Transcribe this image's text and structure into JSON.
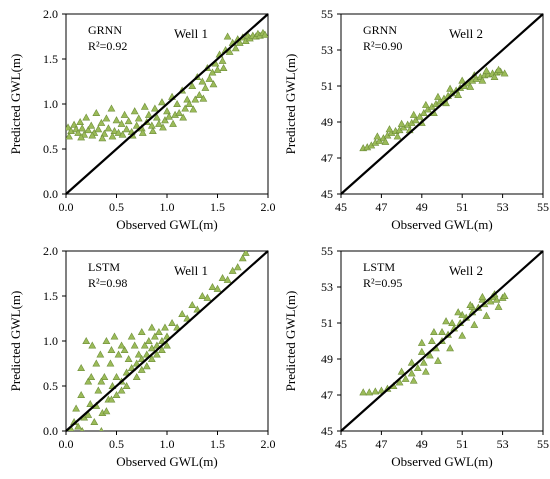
{
  "chart_data": [
    {
      "type": "scatter",
      "method_label": "GRNN",
      "r2_label": "R²=0.92",
      "well_label": "Well 1",
      "xlabel": "Observed GWL(m)",
      "ylabel": "Predicted GWL(m)",
      "xlim": [
        0.0,
        2.0
      ],
      "ylim": [
        0.0,
        2.0
      ],
      "xticks": [
        "0.0",
        "0.5",
        "1.0",
        "1.5",
        "2.0"
      ],
      "yticks": [
        "0.0",
        "0.5",
        "1.0",
        "1.5",
        "2.0"
      ],
      "reference_line": "1:1",
      "marker_color": "#9bbb59",
      "marker_edge_color": "#6f8f3a",
      "line_color": "#000000",
      "points": [
        [
          0.02,
          0.74
        ],
        [
          0.05,
          0.7
        ],
        [
          0.08,
          0.77
        ],
        [
          0.1,
          0.72
        ],
        [
          0.12,
          0.68
        ],
        [
          0.14,
          0.8
        ],
        [
          0.16,
          0.73
        ],
        [
          0.18,
          0.66
        ],
        [
          0.2,
          0.85
        ],
        [
          0.22,
          0.71
        ],
        [
          0.25,
          0.76
        ],
        [
          0.28,
          0.68
        ],
        [
          0.3,
          0.9
        ],
        [
          0.32,
          0.72
        ],
        [
          0.35,
          0.79
        ],
        [
          0.38,
          0.67
        ],
        [
          0.4,
          0.84
        ],
        [
          0.42,
          0.73
        ],
        [
          0.45,
          0.95
        ],
        [
          0.48,
          0.7
        ],
        [
          0.5,
          0.82
        ],
        [
          0.52,
          0.68
        ],
        [
          0.55,
          0.78
        ],
        [
          0.58,
          0.88
        ],
        [
          0.6,
          0.72
        ],
        [
          0.62,
          0.81
        ],
        [
          0.65,
          0.69
        ],
        [
          0.68,
          0.92
        ],
        [
          0.7,
          0.76
        ],
        [
          0.72,
          0.84
        ],
        [
          0.75,
          0.73
        ],
        [
          0.78,
          0.97
        ],
        [
          0.8,
          0.8
        ],
        [
          0.82,
          0.88
        ],
        [
          0.85,
          0.76
        ],
        [
          0.88,
          0.95
        ],
        [
          0.9,
          0.85
        ],
        [
          0.92,
          0.78
        ],
        [
          0.95,
          1.02
        ],
        [
          0.98,
          0.82
        ],
        [
          1.0,
          0.92
        ],
        [
          1.02,
          0.86
        ],
        [
          1.05,
          1.08
        ],
        [
          1.08,
          0.88
        ],
        [
          1.1,
          1.0
        ],
        [
          1.12,
          0.9
        ],
        [
          1.15,
          1.15
        ],
        [
          1.18,
          0.95
        ],
        [
          1.2,
          1.05
        ],
        [
          1.22,
          1.0
        ],
        [
          1.25,
          1.2
        ],
        [
          1.28,
          1.05
        ],
        [
          1.3,
          1.3
        ],
        [
          1.32,
          1.1
        ],
        [
          1.35,
          1.25
        ],
        [
          1.38,
          1.18
        ],
        [
          1.4,
          1.4
        ],
        [
          1.42,
          1.28
        ],
        [
          1.45,
          1.35
        ],
        [
          1.48,
          1.45
        ],
        [
          1.5,
          1.38
        ],
        [
          1.52,
          1.55
        ],
        [
          1.55,
          1.48
        ],
        [
          1.58,
          1.6
        ],
        [
          1.6,
          1.75
        ],
        [
          1.62,
          1.58
        ],
        [
          1.65,
          1.68
        ],
        [
          1.68,
          1.62
        ],
        [
          1.7,
          1.72
        ],
        [
          1.72,
          1.68
        ],
        [
          1.75,
          1.74
        ],
        [
          1.78,
          1.7
        ],
        [
          1.8,
          1.76
        ],
        [
          1.82,
          1.73
        ],
        [
          1.85,
          1.76
        ],
        [
          1.88,
          1.75
        ],
        [
          1.9,
          1.78
        ],
        [
          1.92,
          1.76
        ],
        [
          1.95,
          1.79
        ],
        [
          1.97,
          1.77
        ],
        [
          0.03,
          0.64
        ],
        [
          0.15,
          0.63
        ],
        [
          0.26,
          0.65
        ],
        [
          0.36,
          0.62
        ],
        [
          0.46,
          0.64
        ],
        [
          0.56,
          0.66
        ],
        [
          0.66,
          0.65
        ],
        [
          0.76,
          0.68
        ],
        [
          0.86,
          0.7
        ],
        [
          0.96,
          0.74
        ],
        [
          1.06,
          0.78
        ],
        [
          1.16,
          0.85
        ],
        [
          1.26,
          0.94
        ],
        [
          1.36,
          1.06
        ],
        [
          1.46,
          1.22
        ],
        [
          1.56,
          1.4
        ]
      ]
    },
    {
      "type": "scatter",
      "method_label": "GRNN",
      "r2_label": "R²=0.90",
      "well_label": "Well 2",
      "xlabel": "Observed GWL(m)",
      "ylabel": "Predicted GWL(m)",
      "xlim": [
        45,
        55
      ],
      "ylim": [
        45,
        55
      ],
      "xticks": [
        "45",
        "47",
        "49",
        "51",
        "53",
        "55"
      ],
      "yticks": [
        "45",
        "47",
        "49",
        "51",
        "53",
        "55"
      ],
      "reference_line": "1:1",
      "marker_color": "#9bbb59",
      "marker_edge_color": "#6f8f3a",
      "line_color": "#000000",
      "points": [
        [
          46.1,
          47.55
        ],
        [
          46.3,
          47.6
        ],
        [
          46.5,
          47.7
        ],
        [
          46.7,
          47.85
        ],
        [
          46.9,
          47.95
        ],
        [
          47.1,
          48.1
        ],
        [
          47.3,
          48.25
        ],
        [
          47.5,
          48.4
        ],
        [
          47.7,
          48.5
        ],
        [
          47.9,
          48.55
        ],
        [
          48.1,
          48.7
        ],
        [
          48.3,
          48.85
        ],
        [
          48.5,
          48.95
        ],
        [
          48.7,
          49.1
        ],
        [
          48.9,
          49.3
        ],
        [
          49.1,
          49.5
        ],
        [
          49.3,
          49.7
        ],
        [
          49.5,
          49.85
        ],
        [
          49.7,
          50.0
        ],
        [
          49.9,
          50.15
        ],
        [
          50.1,
          50.3
        ],
        [
          50.3,
          50.45
        ],
        [
          50.5,
          50.6
        ],
        [
          50.7,
          50.75
        ],
        [
          50.9,
          50.9
        ],
        [
          51.1,
          51.0
        ],
        [
          51.3,
          51.15
        ],
        [
          51.5,
          51.3
        ],
        [
          51.7,
          51.4
        ],
        [
          51.9,
          51.5
        ],
        [
          52.1,
          51.6
        ],
        [
          52.3,
          51.65
        ],
        [
          52.5,
          51.7
        ],
        [
          52.7,
          51.75
        ],
        [
          52.9,
          51.8
        ],
        [
          53.1,
          51.7
        ],
        [
          46.8,
          48.2
        ],
        [
          47.4,
          48.6
        ],
        [
          48.0,
          48.9
        ],
        [
          48.6,
          49.4
        ],
        [
          49.2,
          49.95
        ],
        [
          49.8,
          50.4
        ],
        [
          50.4,
          50.85
        ],
        [
          51.0,
          51.3
        ],
        [
          51.6,
          51.6
        ],
        [
          52.2,
          51.85
        ],
        [
          52.8,
          51.9
        ],
        [
          47.2,
          47.9
        ],
        [
          47.8,
          48.2
        ],
        [
          48.4,
          48.55
        ],
        [
          49.0,
          48.95
        ],
        [
          49.6,
          49.5
        ],
        [
          50.2,
          50.05
        ],
        [
          50.8,
          50.5
        ],
        [
          51.4,
          50.95
        ],
        [
          52.0,
          51.3
        ],
        [
          52.6,
          51.5
        ]
      ]
    },
    {
      "type": "scatter",
      "method_label": "LSTM",
      "r2_label": "R²=0.98",
      "well_label": "Well 1",
      "xlabel": "Observed GWL(m)",
      "ylabel": "Predicted GWL(m)",
      "xlim": [
        0.0,
        2.0
      ],
      "ylim": [
        0.0,
        2.0
      ],
      "xticks": [
        "0.0",
        "0.5",
        "1.0",
        "1.5",
        "2.0"
      ],
      "yticks": [
        "0.0",
        "0.5",
        "1.0",
        "1.5",
        "2.0"
      ],
      "reference_line": "1:1",
      "marker_color": "#9bbb59",
      "marker_edge_color": "#6f8f3a",
      "line_color": "#000000",
      "points": [
        [
          0.05,
          0.02
        ],
        [
          0.08,
          0.1
        ],
        [
          0.1,
          0.25
        ],
        [
          0.12,
          0.05
        ],
        [
          0.15,
          0.4
        ],
        [
          0.18,
          0.15
        ],
        [
          0.2,
          1.0
        ],
        [
          0.22,
          0.55
        ],
        [
          0.24,
          0.3
        ],
        [
          0.26,
          0.95
        ],
        [
          0.28,
          0.1
        ],
        [
          0.3,
          0.75
        ],
        [
          0.32,
          0.45
        ],
        [
          0.34,
          0.85
        ],
        [
          0.36,
          0.2
        ],
        [
          0.38,
          0.6
        ],
        [
          0.4,
          1.0
        ],
        [
          0.42,
          0.35
        ],
        [
          0.44,
          0.75
        ],
        [
          0.46,
          0.5
        ],
        [
          0.48,
          1.05
        ],
        [
          0.5,
          0.6
        ],
        [
          0.52,
          0.85
        ],
        [
          0.55,
          0.45
        ],
        [
          0.58,
          0.9
        ],
        [
          0.6,
          0.65
        ],
        [
          0.62,
          0.8
        ],
        [
          0.65,
          0.7
        ],
        [
          0.68,
          0.95
        ],
        [
          0.7,
          0.75
        ],
        [
          0.72,
          0.85
        ],
        [
          0.75,
          0.8
        ],
        [
          0.78,
          0.95
        ],
        [
          0.8,
          0.85
        ],
        [
          0.82,
          1.0
        ],
        [
          0.85,
          0.92
        ],
        [
          0.88,
          1.05
        ],
        [
          0.9,
          0.95
        ],
        [
          0.92,
          1.1
        ],
        [
          0.95,
          1.0
        ],
        [
          0.98,
          1.15
        ],
        [
          1.0,
          1.05
        ],
        [
          1.05,
          1.2
        ],
        [
          1.1,
          1.15
        ],
        [
          1.15,
          1.3
        ],
        [
          1.2,
          1.25
        ],
        [
          1.25,
          1.4
        ],
        [
          1.3,
          1.35
        ],
        [
          1.35,
          1.5
        ],
        [
          1.4,
          1.48
        ],
        [
          1.45,
          1.6
        ],
        [
          1.5,
          1.58
        ],
        [
          1.55,
          1.7
        ],
        [
          1.6,
          1.68
        ],
        [
          1.65,
          1.78
        ],
        [
          1.7,
          1.82
        ],
        [
          1.75,
          1.92
        ],
        [
          1.78,
          1.98
        ],
        [
          0.16,
          0.0
        ],
        [
          0.22,
          0.18
        ],
        [
          0.3,
          0.28
        ],
        [
          0.35,
          0.0
        ],
        [
          0.4,
          0.22
        ],
        [
          0.45,
          0.35
        ],
        [
          0.5,
          0.4
        ],
        [
          0.55,
          0.55
        ],
        [
          0.6,
          0.5
        ],
        [
          0.7,
          0.6
        ],
        [
          0.75,
          0.68
        ],
        [
          0.8,
          0.72
        ],
        [
          0.85,
          0.8
        ],
        [
          0.9,
          0.85
        ],
        [
          0.95,
          0.9
        ],
        [
          1.0,
          0.95
        ],
        [
          0.15,
          0.7
        ],
        [
          0.25,
          0.6
        ],
        [
          0.35,
          0.55
        ],
        [
          0.45,
          0.9
        ],
        [
          0.55,
          0.95
        ],
        [
          0.65,
          1.05
        ],
        [
          0.75,
          1.1
        ],
        [
          0.85,
          1.15
        ]
      ]
    },
    {
      "type": "scatter",
      "method_label": "LSTM",
      "r2_label": "R²=0.95",
      "well_label": "Well 2",
      "xlabel": "Observed GWL(m)",
      "ylabel": "Predicted GWL(m)",
      "xlim": [
        45,
        55
      ],
      "ylim": [
        45,
        55
      ],
      "xticks": [
        "45",
        "47",
        "49",
        "51",
        "53",
        "55"
      ],
      "yticks": [
        "45",
        "47",
        "49",
        "51",
        "53",
        "55"
      ],
      "reference_line": "1:1",
      "marker_color": "#9bbb59",
      "marker_edge_color": "#6f8f3a",
      "line_color": "#000000",
      "points": [
        [
          46.1,
          47.15
        ],
        [
          46.4,
          47.15
        ],
        [
          46.7,
          47.2
        ],
        [
          47.0,
          47.25
        ],
        [
          47.3,
          47.35
        ],
        [
          47.6,
          47.5
        ],
        [
          47.9,
          47.7
        ],
        [
          48.2,
          47.9
        ],
        [
          48.5,
          48.2
        ],
        [
          48.8,
          48.5
        ],
        [
          49.1,
          48.8
        ],
        [
          49.4,
          49.2
        ],
        [
          49.7,
          49.6
        ],
        [
          50.0,
          50.0
        ],
        [
          50.3,
          50.35
        ],
        [
          50.6,
          50.7
        ],
        [
          50.9,
          51.0
        ],
        [
          51.2,
          51.3
        ],
        [
          51.5,
          51.6
        ],
        [
          51.8,
          51.85
        ],
        [
          52.1,
          52.05
        ],
        [
          52.4,
          52.2
        ],
        [
          52.7,
          52.3
        ],
        [
          53.0,
          52.4
        ],
        [
          53.1,
          52.5
        ],
        [
          48.0,
          48.3
        ],
        [
          48.5,
          48.8
        ],
        [
          49.0,
          49.4
        ],
        [
          49.5,
          50.0
        ],
        [
          50.0,
          50.5
        ],
        [
          50.5,
          51.0
        ],
        [
          51.0,
          51.45
        ],
        [
          51.5,
          51.9
        ],
        [
          52.0,
          52.3
        ],
        [
          52.5,
          52.45
        ],
        [
          48.6,
          47.8
        ],
        [
          49.2,
          48.3
        ],
        [
          49.8,
          48.9
        ],
        [
          50.4,
          49.6
        ],
        [
          51.0,
          50.3
        ],
        [
          51.6,
          50.9
        ],
        [
          52.2,
          51.4
        ],
        [
          52.8,
          51.9
        ],
        [
          49.0,
          49.9
        ],
        [
          49.6,
          50.5
        ],
        [
          50.2,
          51.1
        ],
        [
          50.8,
          51.6
        ],
        [
          51.4,
          52.0
        ],
        [
          52.0,
          52.45
        ],
        [
          52.6,
          52.6
        ]
      ]
    }
  ]
}
